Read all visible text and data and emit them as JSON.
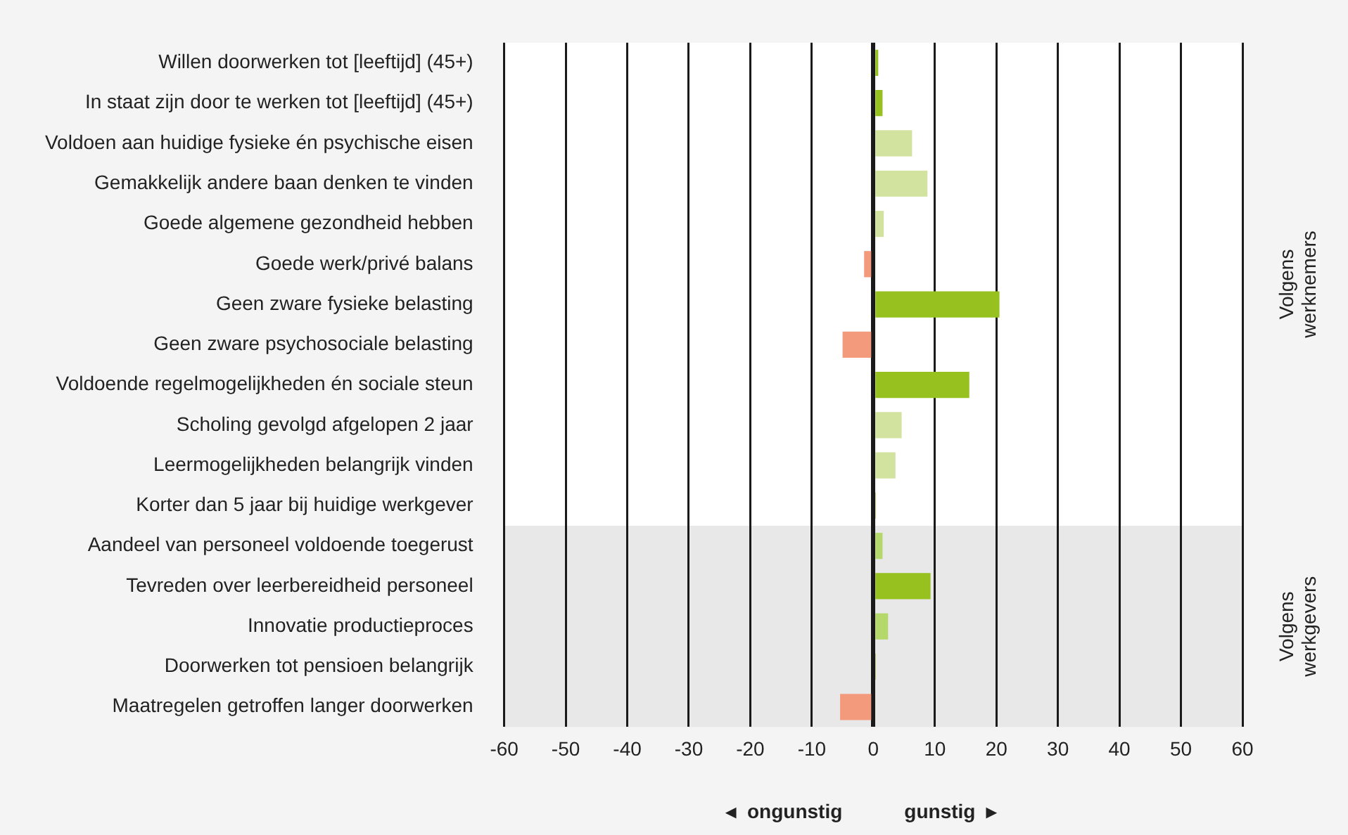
{
  "chart_data": {
    "type": "bar",
    "orientation": "horizontal",
    "categories": [
      "Willen doorwerken tot [leeftijd] (45+)",
      "In staat zijn door te werken tot [leeftijd] (45+)",
      "Voldoen aan huidige fysieke én psychische eisen",
      "Gemakkelijk andere baan denken te vinden",
      "Goede algemene gezondheid hebben",
      "Goede werk/privé balans",
      "Geen zware fysieke belasting",
      "Geen zware psychosociale belasting",
      "Voldoende regelmogelijkheden én sociale steun",
      "Scholing gevolgd afgelopen 2 jaar",
      "Leermogelijkheden belangrijk vinden",
      "Korter dan 5 jaar bij huidige werkgever",
      "Aandeel van personeel voldoende toegerust",
      "Tevreden over leerbereidheid personeel",
      "Innovatie productieproces",
      "Doorwerken tot pensioen belangrijk",
      "Maatregelen getroffen langer doorwerken"
    ],
    "values": [
      0.8,
      1.5,
      6.3,
      8.8,
      1.7,
      -1.5,
      20.5,
      -5.0,
      15.6,
      4.6,
      3.6,
      0.4,
      1.5,
      9.3,
      2.4,
      0.4,
      -5.4
    ],
    "colors": [
      "#97c11f",
      "#97c11f",
      "#d2e29f",
      "#d2e29f",
      "#d2e29f",
      "#f39a7c",
      "#97c11f",
      "#f39a7c",
      "#97c11f",
      "#d2e29f",
      "#d2e29f",
      "#97c11f",
      "#b5d86a",
      "#97c11f",
      "#b5d86a",
      "#97c11f",
      "#f39a7c"
    ],
    "xlim": [
      -60,
      60
    ],
    "xticks": [
      -60,
      -50,
      -40,
      -30,
      -20,
      -10,
      0,
      10,
      20,
      30,
      40,
      50,
      60
    ],
    "grid": "x",
    "bands": [
      {
        "axis": "y",
        "from": "Willen doorwerken tot [leeftijd] (45+)",
        "to": "Korter dan 5 jaar bij huidige werkgever",
        "label": "Volgens werknemers",
        "color": "#ffffff"
      },
      {
        "axis": "y",
        "from": "Aandeel van personeel voldoende toegerust",
        "to": "Maatregelen getroffen langer doorwerken",
        "label": "Volgens werkgevers",
        "color": "#e8e8e8"
      }
    ],
    "annotations": [
      "◂  ongunstig",
      "gunstig  ▸"
    ]
  }
}
